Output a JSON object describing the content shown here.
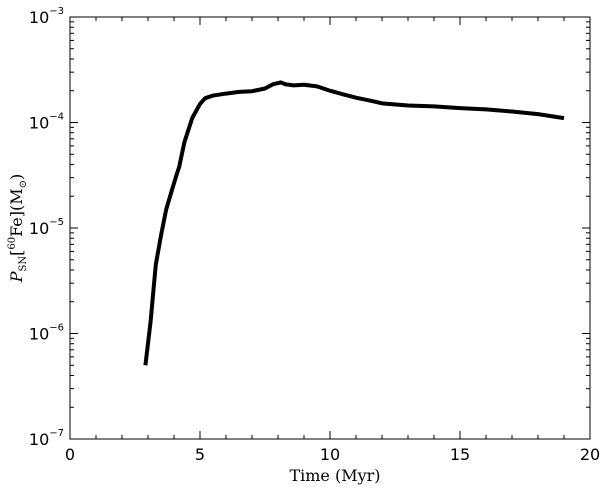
{
  "chart_data": {
    "type": "line",
    "title": "",
    "xlabel": "Time (Myr)",
    "ylabel": {
      "symbol": "P",
      "subscript": "SN",
      "open": "[",
      "isotope_mass": "60",
      "element": "Fe",
      "close": "](M",
      "sun_symbol": "⊙",
      "end": ")"
    },
    "xlim": [
      0,
      20
    ],
    "ylim": [
      1e-07,
      0.001
    ],
    "yscale": "log",
    "grid": false,
    "legend": "none",
    "x_ticks": [
      0,
      5,
      10,
      15,
      20
    ],
    "x_tick_labels": [
      "0",
      "5",
      "10",
      "15",
      "20"
    ],
    "y_ticks": [
      1e-07,
      1e-06,
      1e-05,
      0.0001,
      0.001
    ],
    "y_tick_labels": [
      {
        "base": "10",
        "exp": "−7"
      },
      {
        "base": "10",
        "exp": "−6"
      },
      {
        "base": "10",
        "exp": "−5"
      },
      {
        "base": "10",
        "exp": "−4"
      },
      {
        "base": "10",
        "exp": "−3"
      }
    ],
    "series": [
      {
        "color": "#000000",
        "x": [
          2.9,
          3.1,
          3.3,
          3.5,
          3.7,
          3.9,
          4.1,
          4.2,
          4.4,
          4.7,
          5.0,
          5.2,
          5.5,
          6.0,
          6.5,
          7.0,
          7.5,
          7.8,
          8.1,
          8.3,
          8.6,
          9.0,
          9.5,
          10.0,
          10.5,
          11.0,
          11.6,
          12.0,
          13.0,
          14.0,
          15.0,
          16.0,
          17.0,
          18.0,
          19.0
        ],
        "y": [
          5e-07,
          1.3e-06,
          4.5e-06,
          8.5e-06,
          1.5e-05,
          2.2e-05,
          3.2e-05,
          3.8e-05,
          6.5e-05,
          0.00011,
          0.00015,
          0.00017,
          0.00018,
          0.000188,
          0.000195,
          0.000198,
          0.00021,
          0.00023,
          0.00024,
          0.00023,
          0.000225,
          0.000228,
          0.00022,
          0.0002,
          0.000185,
          0.000172,
          0.00016,
          0.000152,
          0.000145,
          0.000142,
          0.000137,
          0.000133,
          0.000127,
          0.00012,
          0.00011
        ]
      }
    ]
  }
}
